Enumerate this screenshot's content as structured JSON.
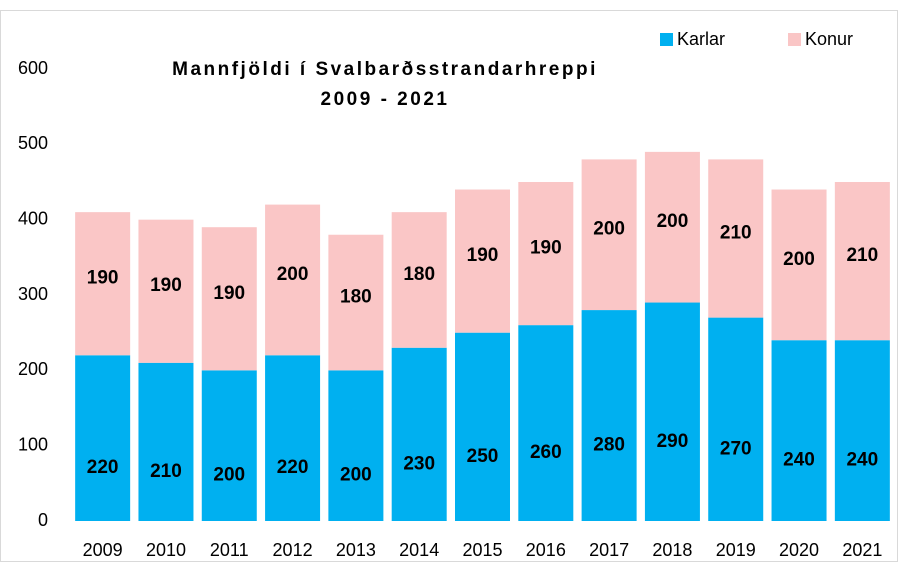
{
  "chart_data": {
    "type": "stacked_bar",
    "title": [
      "Mannfjöldi í Svalbarðsstrandarhreppi",
      "2009 - 2021"
    ],
    "categories": [
      "2009",
      "2010",
      "2011",
      "2012",
      "2013",
      "2014",
      "2015",
      "2016",
      "2017",
      "2018",
      "2019",
      "2020",
      "2021"
    ],
    "series": [
      {
        "name": "Karlar",
        "color": "#00b0f0",
        "values": [
          220,
          210,
          200,
          220,
          200,
          230,
          250,
          260,
          280,
          290,
          270,
          240,
          240
        ]
      },
      {
        "name": "Konur",
        "color": "#fac6c6",
        "values": [
          190,
          190,
          190,
          200,
          180,
          180,
          190,
          190,
          200,
          200,
          210,
          200,
          210
        ]
      }
    ],
    "ylim": [
      0,
      600
    ],
    "yticks": [
      0,
      100,
      200,
      300,
      400,
      500,
      600
    ],
    "grid": false,
    "legend": "top-right"
  }
}
